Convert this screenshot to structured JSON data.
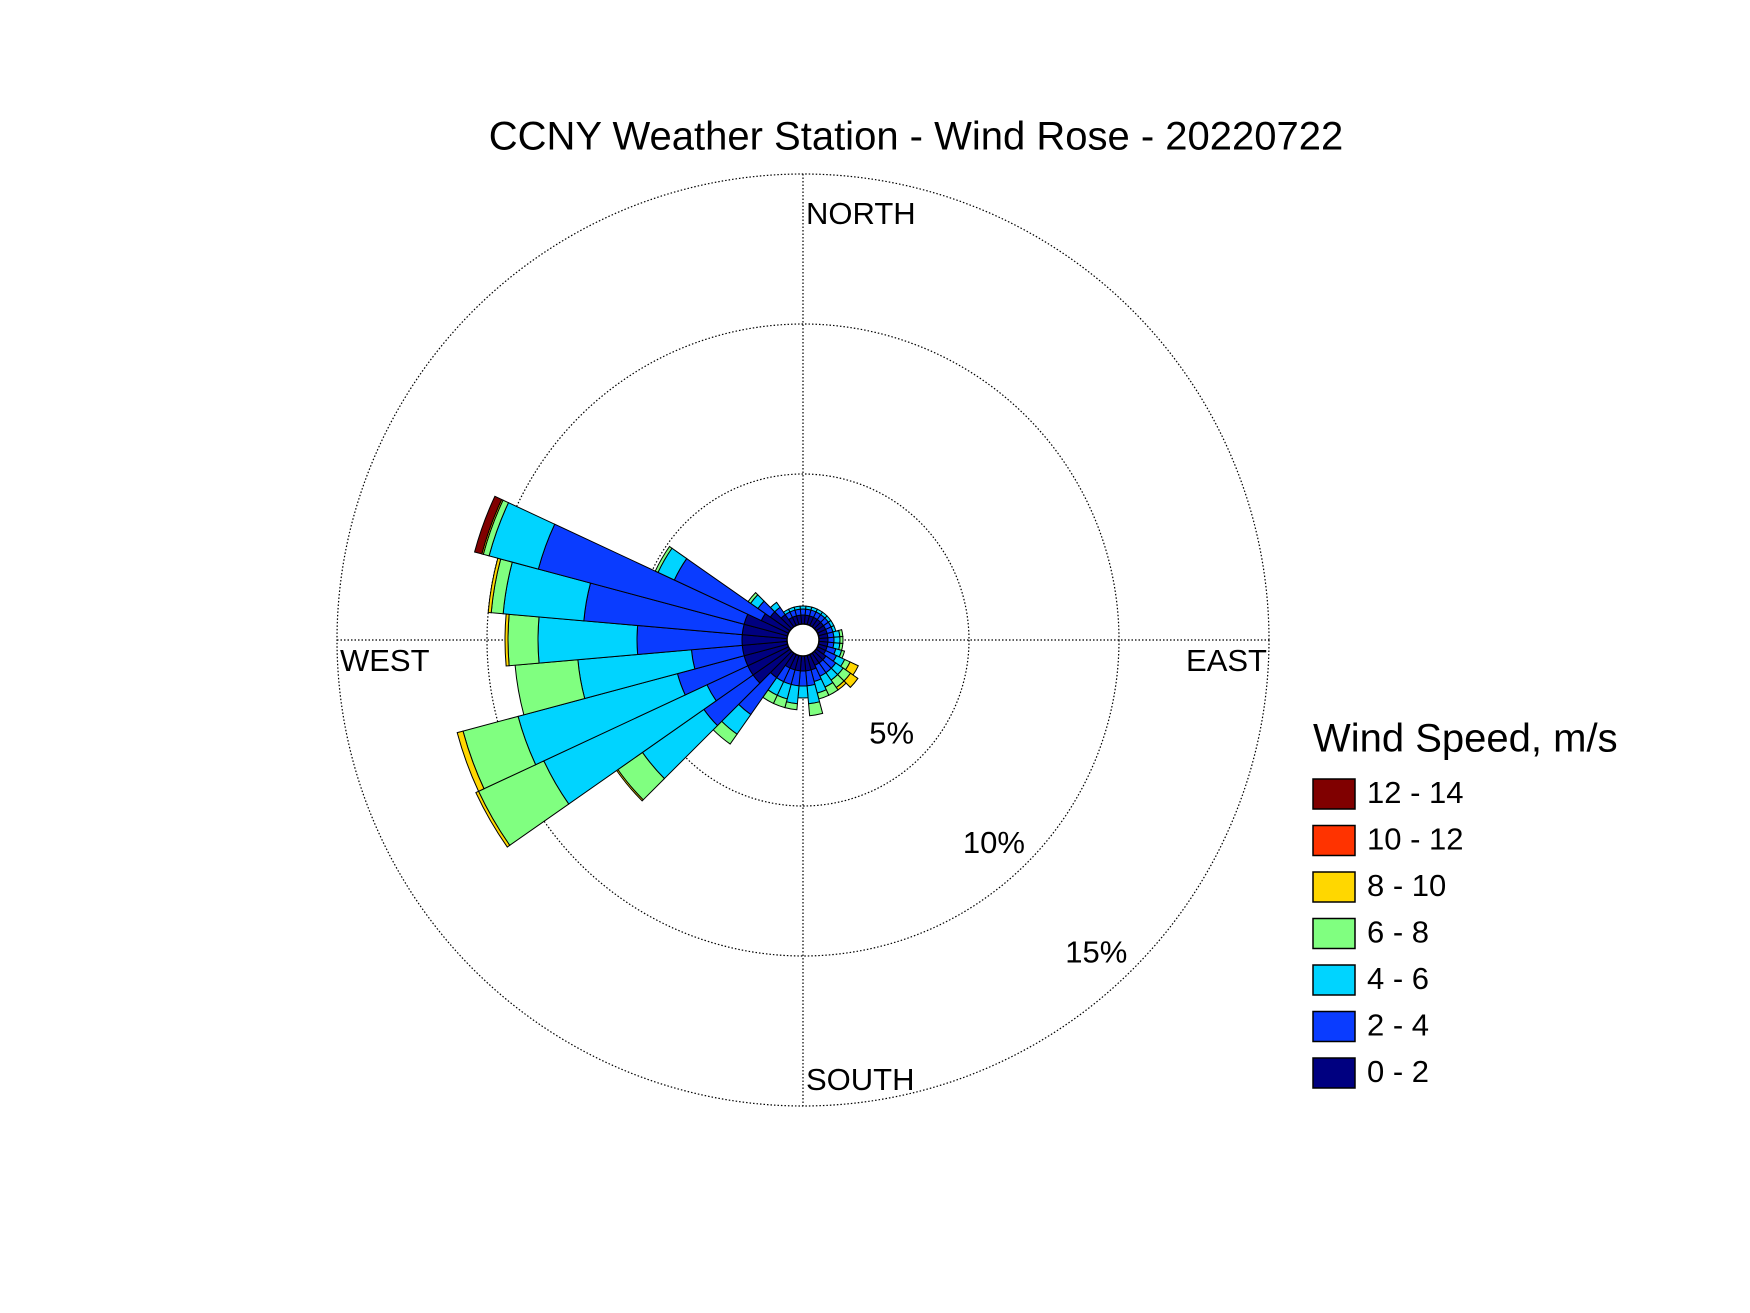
{
  "chart_data": {
    "type": "windrose",
    "title": "CCNY Weather Station - Wind Rose - 20220722",
    "direction_labels": [
      "NORTH",
      "EAST",
      "SOUTH",
      "WEST"
    ],
    "legend_title": "Wind Speed, m/s",
    "directions": [
      0,
      10,
      20,
      30,
      40,
      50,
      60,
      70,
      80,
      90,
      100,
      110,
      120,
      130,
      140,
      150,
      160,
      170,
      180,
      190,
      200,
      210,
      220,
      230,
      240,
      250,
      260,
      270,
      280,
      290,
      300,
      310,
      320,
      330,
      340,
      350
    ],
    "rlim": [
      0,
      15
    ],
    "rticks": [
      {
        "value": 5,
        "label": "5%"
      },
      {
        "value": 10,
        "label": "10%"
      },
      {
        "value": 15,
        "label": "15%"
      }
    ],
    "series": [
      {
        "name": "0 - 2",
        "color": "#000080",
        "values": [
          0.3,
          0.3,
          0.3,
          0.3,
          0.3,
          0.3,
          0.3,
          0.3,
          0.3,
          0.3,
          0.3,
          0.3,
          0.3,
          0.4,
          0.4,
          0.4,
          0.5,
          0.5,
          0.5,
          0.5,
          0.5,
          0.5,
          1.0,
          1.5,
          1.5,
          1.5,
          1.5,
          1.5,
          1.5,
          1.5,
          1.0,
          0.8,
          0.5,
          0.3,
          0.3,
          0.3
        ]
      },
      {
        "name": "2 - 4",
        "color": "#0a3cff",
        "values": [
          0.2,
          0.2,
          0.2,
          0.2,
          0.2,
          0.2,
          0.2,
          0.2,
          0.2,
          0.2,
          0.2,
          0.3,
          0.4,
          0.4,
          0.4,
          0.4,
          0.4,
          0.5,
          0.5,
          0.5,
          0.5,
          0.5,
          1.5,
          2.0,
          1.5,
          2.3,
          1.7,
          3.5,
          5.3,
          7.1,
          3.2,
          0.5,
          0.3,
          0.2,
          0.2,
          0.2
        ]
      },
      {
        "name": "4 - 6",
        "color": "#00d4ff",
        "values": [
          0.1,
          0.1,
          0.1,
          0.1,
          0.1,
          0.1,
          0.1,
          0.1,
          0.2,
          0.2,
          0.2,
          0.2,
          0.3,
          0.3,
          0.3,
          0.4,
          0.4,
          0.6,
          0.4,
          0.6,
          0.5,
          0.5,
          0.8,
          2.5,
          6.0,
          5.5,
          3.8,
          3.3,
          2.7,
          1.7,
          0.6,
          0.3,
          0.2,
          0.1,
          0.1,
          0.1
        ]
      },
      {
        "name": "6 - 8",
        "color": "#80ff80",
        "values": [
          0,
          0,
          0,
          0,
          0,
          0,
          0,
          0,
          0.1,
          0.1,
          0.1,
          0.1,
          0.2,
          0.3,
          0.3,
          0.3,
          0.2,
          0.4,
          0,
          0.2,
          0.3,
          0.3,
          0.4,
          1.0,
          2.4,
          1.9,
          2.1,
          1.0,
          0.4,
          0.2,
          0.1,
          0.1,
          0,
          0,
          0,
          0
        ]
      },
      {
        "name": "8 - 10",
        "color": "#ffd700",
        "values": [
          0,
          0,
          0,
          0,
          0,
          0,
          0,
          0,
          0,
          0,
          0,
          0,
          0.3,
          0.3,
          0.1,
          0,
          0,
          0,
          0,
          0,
          0,
          0,
          0,
          0.05,
          0.1,
          0.2,
          0,
          0.1,
          0.1,
          0.05,
          0,
          0,
          0,
          0,
          0,
          0
        ]
      },
      {
        "name": "10 - 12",
        "color": "#ff3300",
        "values": [
          0,
          0,
          0,
          0,
          0,
          0,
          0,
          0,
          0,
          0,
          0,
          0,
          0,
          0,
          0,
          0,
          0,
          0,
          0,
          0,
          0,
          0,
          0,
          0,
          0,
          0,
          0,
          0,
          0,
          0,
          0,
          0,
          0,
          0,
          0,
          0
        ]
      },
      {
        "name": "12 - 14",
        "color": "#800000",
        "values": [
          0,
          0,
          0,
          0,
          0,
          0,
          0,
          0,
          0,
          0,
          0,
          0,
          0,
          0,
          0,
          0,
          0,
          0,
          0,
          0,
          0,
          0,
          0,
          0,
          0,
          0,
          0,
          0,
          0,
          0.25,
          0,
          0,
          0,
          0,
          0,
          0
        ]
      }
    ]
  }
}
